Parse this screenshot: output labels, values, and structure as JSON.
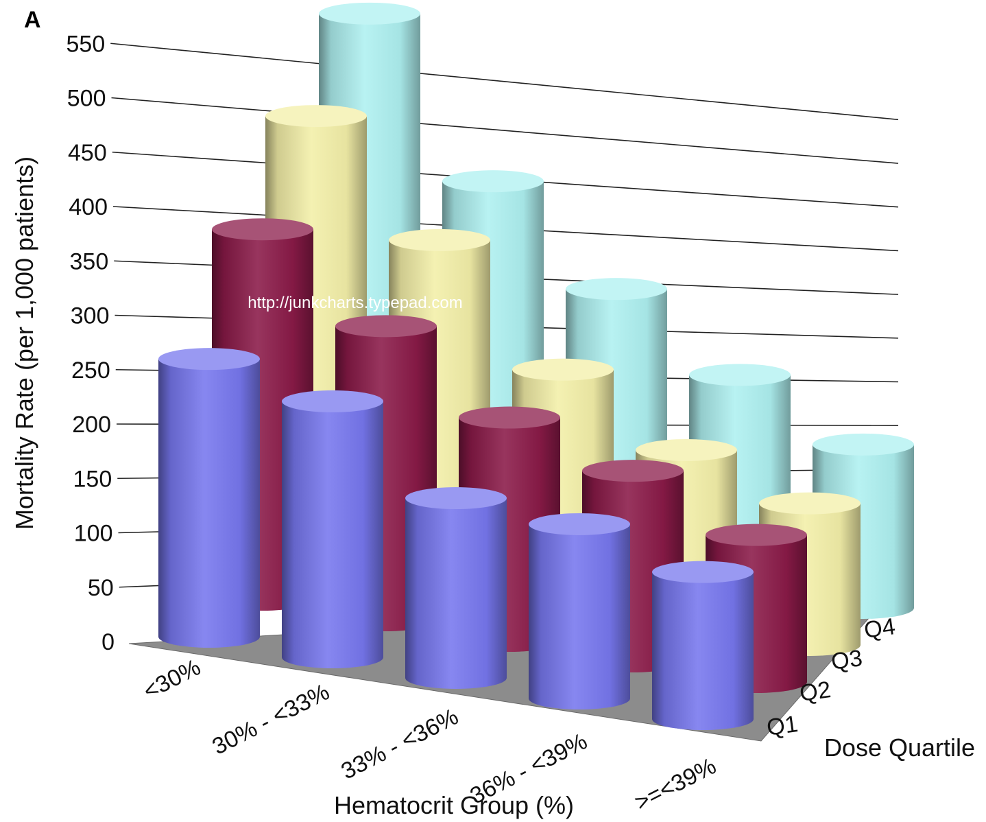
{
  "panel_label": "A",
  "watermark": "http://junkcharts.typepad.com",
  "colors": {
    "Q1": "#7777ee",
    "Q2": "#8a1a48",
    "Q3": "#f3efa8",
    "Q4": "#aef0f0",
    "floor": "#8c8c8c",
    "grid": "#222222"
  },
  "chart_data": {
    "type": "bar",
    "subtype": "3d-cylinder",
    "title": "",
    "xlabel": "Hematocrit Group (%)",
    "ylabel": "Mortality Rate (per 1,000 patients)",
    "zlabel": "Dose Quartile",
    "categories": [
      "<30%",
      "30% - <33%",
      "33% - <36%",
      "36% - <39%",
      ">=<39%"
    ],
    "yticks": [
      "0",
      "50",
      "100",
      "150",
      "200",
      "250",
      "300",
      "350",
      "400",
      "450",
      "500",
      "550"
    ],
    "ylim": [
      0,
      550
    ],
    "grid": true,
    "legend": "none",
    "series": [
      {
        "name": "Q1",
        "values": [
          255,
          235,
          165,
          160,
          135
        ]
      },
      {
        "name": "Q2",
        "values": [
          340,
          270,
          205,
          175,
          135
        ]
      },
      {
        "name": "Q3",
        "values": [
          410,
          315,
          215,
          160,
          130
        ]
      },
      {
        "name": "Q4",
        "values": [
          470,
          335,
          255,
          195,
          150
        ]
      }
    ]
  }
}
